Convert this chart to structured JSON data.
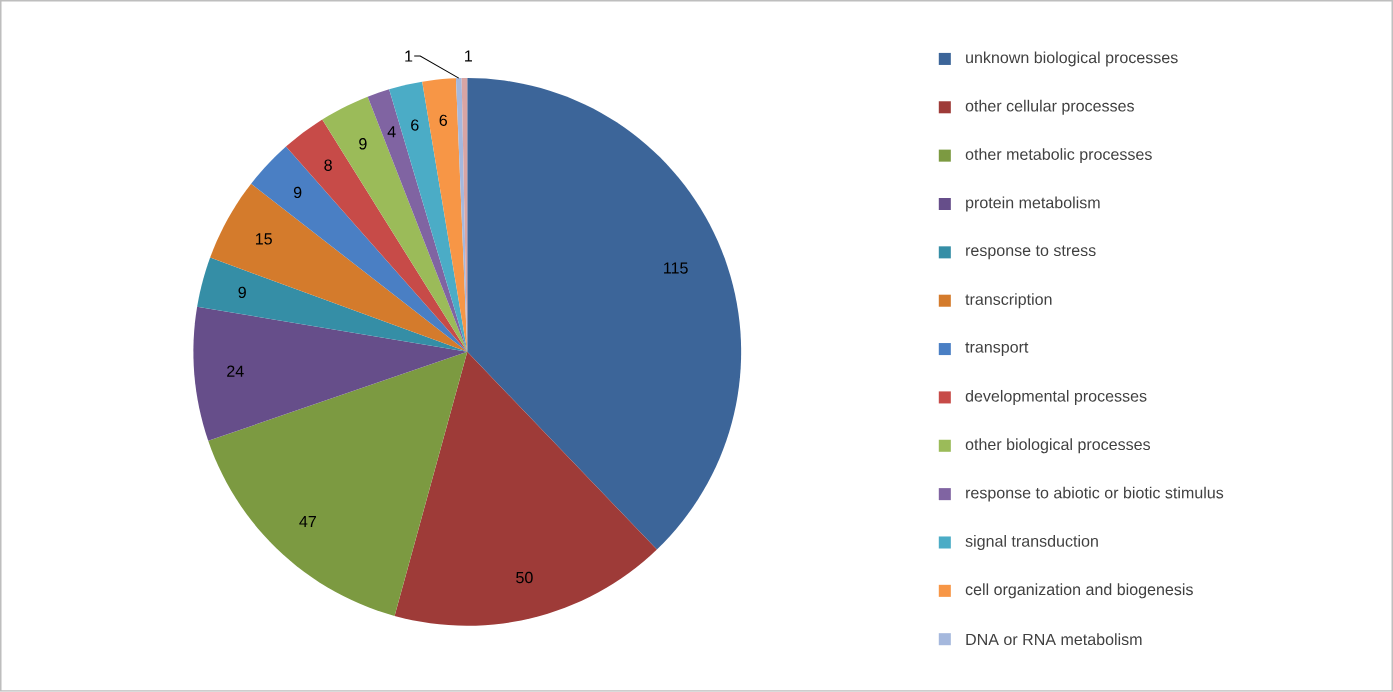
{
  "chart_data": {
    "type": "pie",
    "categories": [
      "unknown biological processes",
      "other cellular processes",
      "other metabolic processes",
      "protein metabolism",
      "response to stress",
      "transcription",
      "transport",
      "developmental processes",
      "other biological processes",
      "response to abiotic or biotic stimulus",
      "signal transduction",
      "cell organization and biogenesis",
      "DNA or RNA metabolism",
      null
    ],
    "values": [
      115,
      50,
      47,
      24,
      9,
      15,
      9,
      8,
      9,
      4,
      6,
      6,
      1,
      1
    ],
    "colors": [
      "#3c6599",
      "#9e3b38",
      "#7c9a41",
      "#664e8a",
      "#358ea6",
      "#d47b2c",
      "#4a7fc4",
      "#c74b48",
      "#9bbb59",
      "#8064a2",
      "#4bacc6",
      "#f79646",
      "#a5b8dd",
      "#d8a5a4"
    ],
    "data_labels": true,
    "legend": "right"
  }
}
